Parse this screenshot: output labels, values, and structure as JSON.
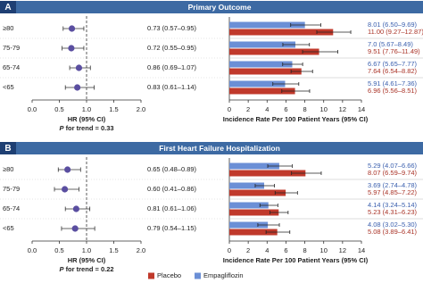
{
  "chart_data": [
    {
      "type": "forest",
      "panel": "A",
      "title": "Primary Outcome",
      "categories": [
        "≥80",
        "75-79",
        "65-74",
        "<65"
      ],
      "values": [
        0.73,
        0.72,
        0.86,
        0.83
      ],
      "ci_low": [
        0.57,
        0.55,
        0.69,
        0.61
      ],
      "ci_high": [
        0.95,
        0.95,
        1.07,
        1.14
      ],
      "value_labels": [
        "0.73 (0.57–0.95)",
        "0.72 (0.55–0.95)",
        "0.86 (0.69–1.07)",
        "0.83 (0.61–1.14)"
      ],
      "color": "#5a4ea0",
      "reference_line": 1,
      "xlim": [
        0,
        2
      ],
      "xticks": [
        {
          "value": 0,
          "label": "0.0"
        },
        {
          "value": 0.5,
          "label": "0.5"
        },
        {
          "value": 1,
          "label": "1.0"
        },
        {
          "value": 1.5,
          "label": "1.5"
        },
        {
          "value": 2,
          "label": "2.0"
        }
      ],
      "xlabel": "HR (95% CI)",
      "trend_symbol": "P",
      "trend_text": "for trend = 0.33"
    },
    {
      "type": "hbar",
      "series": [
        {
          "color": "#c0392b",
          "values": [
            11.0,
            9.51,
            7.64,
            6.96
          ],
          "err_low": [
            9.27,
            7.76,
            6.54,
            5.56
          ],
          "err_high": [
            12.87,
            11.49,
            8.82,
            8.51
          ],
          "value_labels": [
            "11.00 (9.27–12.87)",
            "9.51 (7.76–11.49)",
            "7.64 (6.54–8.82)",
            "6.96 (5.56–8.51)"
          ]
        },
        {
          "color": "#6b8fd6",
          "values": [
            8.01,
            7.0,
            6.67,
            5.91
          ],
          "err_low": [
            6.5,
            5.67,
            5.65,
            4.61
          ],
          "err_high": [
            9.69,
            8.49,
            7.77,
            7.36
          ],
          "value_labels": [
            "8.01 (6.50–9.69)",
            "7.0 (5.67–8.49)",
            "6.67 (5.65–7.77)",
            "5.91 (4.61–7.36)"
          ]
        }
      ],
      "xlim": [
        0,
        14
      ],
      "xticks": [
        0,
        2,
        4,
        6,
        8,
        10,
        12,
        14
      ],
      "xlabel": "Incidence Rate Per 100 Patient Years (95% CI)"
    },
    {
      "type": "forest",
      "panel": "B",
      "title": "First Heart Failure Hospitalization",
      "categories": [
        "≥80",
        "75-79",
        "65-74",
        "<65"
      ],
      "values": [
        0.65,
        0.6,
        0.81,
        0.79
      ],
      "ci_low": [
        0.48,
        0.41,
        0.61,
        0.54
      ],
      "ci_high": [
        0.89,
        0.86,
        1.06,
        1.15
      ],
      "value_labels": [
        "0.65 (0.48–0.89)",
        "0.60 (0.41–0.86)",
        "0.81 (0.61–1.06)",
        "0.79 (0.54–1.15)"
      ],
      "color": "#5a4ea0",
      "reference_line": 1,
      "xlim": [
        0,
        2
      ],
      "xticks": [
        {
          "value": 0,
          "label": "0.0"
        },
        {
          "value": 0.5,
          "label": "0.5"
        },
        {
          "value": 1,
          "label": "1.0"
        },
        {
          "value": 1.5,
          "label": "1.5"
        },
        {
          "value": 2,
          "label": "2.0"
        }
      ],
      "xlabel": "HR (95% CI)",
      "trend_symbol": "P",
      "trend_text": "for trend = 0.22"
    },
    {
      "type": "hbar",
      "series": [
        {
          "name": "Placebo",
          "color": "#c0392b",
          "values": [
            8.07,
            5.97,
            5.23,
            5.08
          ],
          "err_low": [
            6.59,
            4.85,
            4.31,
            3.89
          ],
          "err_high": [
            9.74,
            7.22,
            6.23,
            6.41
          ],
          "value_labels": [
            "8.07 (6.59–9.74)",
            "5.97 (4.85–7.22)",
            "5.23 (4.31–6.23)",
            "5.08 (3.89–6.41)"
          ]
        },
        {
          "name": "Empagliflozin",
          "color": "#6b8fd6",
          "values": [
            5.29,
            3.69,
            4.14,
            4.08
          ],
          "err_low": [
            4.07,
            2.74,
            3.24,
            3.02
          ],
          "err_high": [
            6.66,
            4.78,
            5.14,
            5.3
          ],
          "value_labels": [
            "5.29 (4.07–6.66)",
            "3.69 (2.74–4.78)",
            "4.14 (3.24–5.14)",
            "4.08 (3.02–5.30)"
          ]
        }
      ],
      "xlim": [
        0,
        14
      ],
      "xticks": [
        0,
        2,
        4,
        6,
        8,
        10,
        12,
        14
      ],
      "xlabel": "Incidence Rate Per 100 Patient Years (95% CI)"
    }
  ]
}
